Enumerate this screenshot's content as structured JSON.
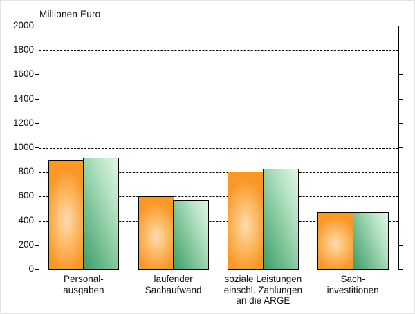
{
  "page": {
    "background": "#ffffff",
    "text_color": "#111111"
  },
  "chart_data": {
    "type": "bar",
    "title": "Millionen Euro",
    "ylabel": "Millionen Euro",
    "xlabel": "",
    "categories": [
      "Personal-\nausgaben",
      "laufender\nSachaufwand",
      "soziale Leistungen\neinschl. Zahlungen\nan die ARGE",
      "Sach-\ninvestitionen"
    ],
    "series": [
      {
        "name": "series-1-orange",
        "color": "#F99727",
        "values": [
          895,
          600,
          805,
          470
        ]
      },
      {
        "name": "series-2-green",
        "color": "#4AA473",
        "values": [
          920,
          575,
          830,
          470
        ]
      }
    ],
    "ylim": [
      0,
      2000
    ],
    "ytick_step": 200,
    "ytick_labels": [
      "0",
      "200",
      "400",
      "600",
      "800",
      "1000",
      "1200",
      "1400",
      "1600",
      "1800",
      "2000"
    ],
    "grid": "horizontal-dashed",
    "legend_position": "none",
    "bar_border_color": "#000000"
  }
}
